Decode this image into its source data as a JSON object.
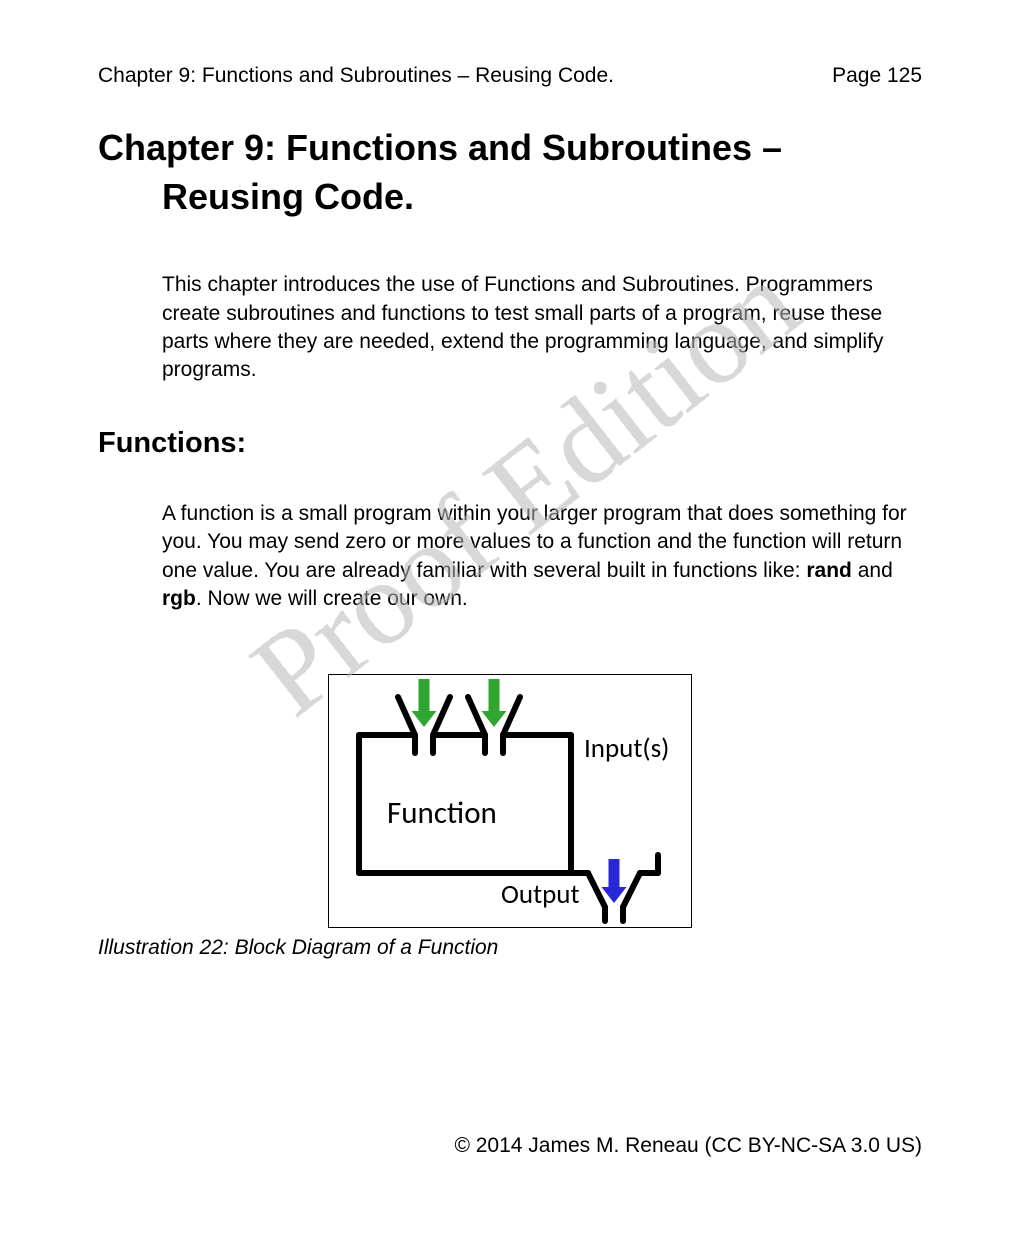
{
  "header": {
    "left": "Chapter 9: Functions and Subroutines – Reusing Code.",
    "right": "Page 125"
  },
  "title": {
    "line1": "Chapter 9: Functions and Subroutines –",
    "line2": "Reusing Code."
  },
  "intro": "This chapter introduces the use of Functions and Subroutines.  Programmers create subroutines and functions to test small parts of a program, reuse these parts where they are needed, extend the programming language, and simplify programs.",
  "section_heading": "Functions:",
  "functions_para": {
    "t1": "A function is a small program within your larger program that does something for you.  You may send zero or more values to a function and the function will return one value.  You are already familiar with several built in functions like: ",
    "b1": "rand",
    "t2": " and ",
    "b2": "rgb",
    "t3": ". Now we will create our own."
  },
  "diagram": {
    "box_label": "Function",
    "inputs_label": "Input(s)",
    "output_label": "Output",
    "input_arrow_color": "#2fa62f",
    "output_arrow_color": "#2828d8",
    "stroke": "#000000",
    "stroke_width": 6,
    "label_fontsize": 27,
    "label_font_family": "Calibri, 'Segoe UI', Arial, sans-serif"
  },
  "caption": "Illustration 22: Block Diagram of a Function",
  "footer": "© 2014 James M. Reneau (CC BY-NC-SA 3.0 US)",
  "watermark": {
    "text": "Proof Edition",
    "color": "#b8b8b8",
    "opacity": 0.55,
    "rotation_deg": -38,
    "fontsize": 120
  }
}
